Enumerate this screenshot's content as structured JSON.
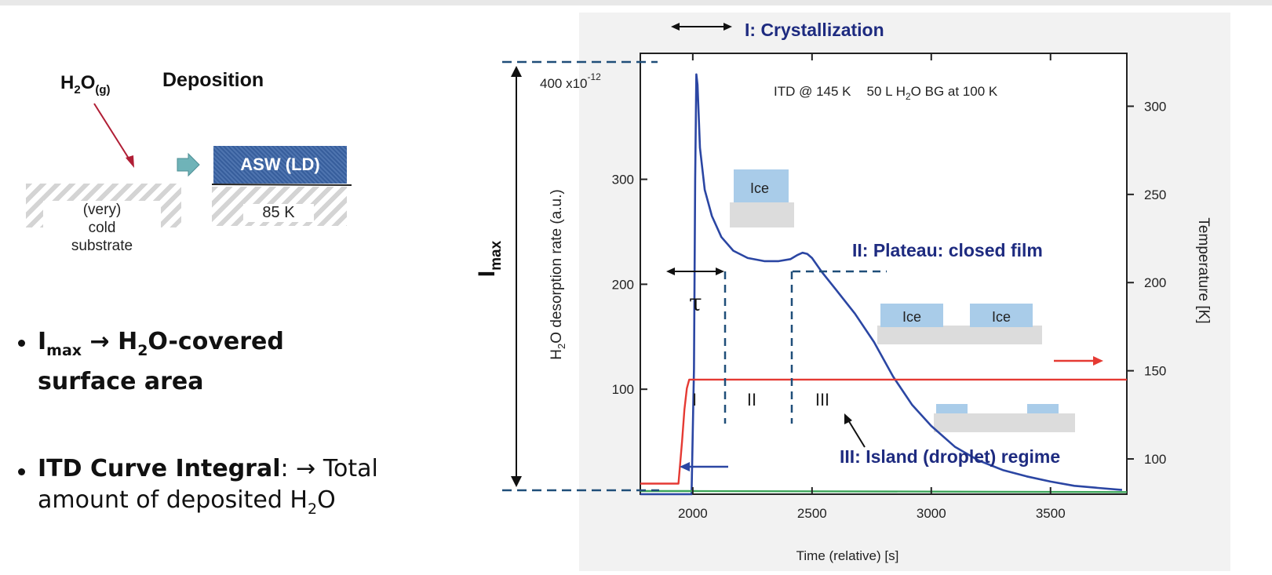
{
  "left_panel": {
    "gas_label": "H",
    "gas_sub1": "2",
    "gas_mid": "O",
    "gas_sub2": "(g)",
    "deposition_title": "Deposition",
    "substrate_label": [
      "(very)",
      "cold",
      "substrate"
    ],
    "film_label": "ASW (LD)",
    "film_temp": "85 K",
    "bullet1": {
      "i": "I",
      "i_sub": "max",
      "arrow": " → H",
      "h_sub": "2",
      "rest_line1": "O-covered",
      "line2": "surface area"
    },
    "bullet2": {
      "bold": "ITD Curve Integral",
      "colon": ":",
      "rest": " → Total",
      "line2": "amount of deposited H",
      "line2_sub": "2",
      "line2_end": "O"
    }
  },
  "imax_label": "I",
  "imax_sub": "max",
  "chart_data": {
    "type": "line",
    "xlabel": "Time (relative) [s]",
    "ylabel_left": "H2O desorption rate (a.u.)",
    "ylabel_left_parts": {
      "pre": "H",
      "sub": "2",
      "post": "O desorption rate (a.u.)"
    },
    "ylabel_right": "Temperature [K]",
    "xlim": [
      1780,
      3820
    ],
    "ylim_left": [
      0,
      420
    ],
    "ylim_right": [
      80,
      330
    ],
    "x_ticks": [
      2000,
      2500,
      3000,
      3500
    ],
    "y_ticks_left": [
      100,
      200,
      300
    ],
    "y_ticks_right": [
      100,
      150,
      200,
      250,
      300
    ],
    "y_scale_note": "400 x10",
    "y_scale_exp": "-12",
    "inset_text": {
      "a": "ITD @ 145 K",
      "b": "50 L H",
      "b_sub": "2",
      "c": "O BG at 100 K"
    },
    "series": [
      {
        "name": "H2O desorption rate",
        "color": "#2b46a3",
        "x": [
          1780,
          1995,
          2005,
          2010,
          2015,
          2020,
          2030,
          2050,
          2080,
          2120,
          2170,
          2230,
          2300,
          2360,
          2410,
          2440,
          2460,
          2480,
          2500,
          2540,
          2600,
          2680,
          2760,
          2840,
          2920,
          3000,
          3100,
          3200,
          3300,
          3400,
          3500,
          3600,
          3700,
          3800
        ],
        "y": [
          0,
          0,
          120,
          300,
          400,
          390,
          330,
          290,
          265,
          245,
          232,
          225,
          222,
          222,
          224,
          228,
          230,
          229,
          225,
          212,
          195,
          172,
          145,
          112,
          85,
          65,
          45,
          32,
          23,
          17,
          12,
          8,
          6,
          4
        ]
      },
      {
        "name": "Temperature",
        "color": "#e53a33",
        "axis": "right",
        "x": [
          1780,
          1940,
          1955,
          1965,
          1975,
          1985,
          3820
        ],
        "y": [
          86,
          86,
          110,
          128,
          140,
          145,
          145
        ]
      },
      {
        "name": "baseline",
        "color": "#3ca65a",
        "x": [
          1780,
          2000,
          3820
        ],
        "y": [
          3,
          3,
          2
        ]
      }
    ],
    "regions": [
      "I",
      "II",
      "III"
    ],
    "tau_label": "τ",
    "annotations": {
      "crystallization": "I: Crystallization",
      "plateau": "II: Plateau: closed film",
      "island": "III: Island (droplet) regime",
      "ice": "Ice"
    },
    "colors": {
      "annotation": "#1e2b80",
      "ice": "#a9cce9",
      "dashed": "#1f4e79"
    }
  }
}
